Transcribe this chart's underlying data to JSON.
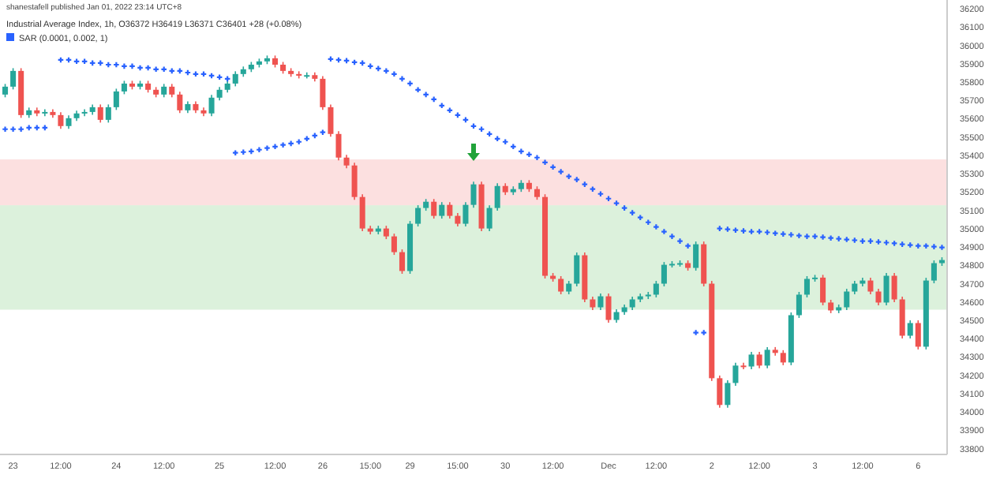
{
  "chart_data": {
    "type": "candlestick",
    "title": "Industrial Average Index, 1h, O36372 H36419 L36371 C36401 +28 (+0.08%)",
    "annotations": [
      "shanestafell published Jan 01, 2022 23:14 UTC+8"
    ],
    "categories": [
      null,
      "23",
      null,
      null,
      null,
      null,
      null,
      "12:00",
      null,
      null,
      null,
      null,
      null,
      null,
      "24",
      null,
      null,
      null,
      null,
      null,
      "12:00",
      null,
      null,
      null,
      null,
      null,
      null,
      "25",
      null,
      null,
      null,
      null,
      null,
      null,
      "12:00",
      null,
      null,
      null,
      null,
      null,
      "26",
      null,
      null,
      null,
      null,
      null,
      "15:00",
      null,
      null,
      null,
      null,
      "29",
      null,
      null,
      null,
      null,
      null,
      "15:00",
      null,
      null,
      null,
      null,
      null,
      "30",
      null,
      null,
      null,
      null,
      null,
      "12:00",
      null,
      null,
      null,
      null,
      null,
      null,
      "Dec",
      null,
      null,
      null,
      null,
      null,
      "12:00",
      null,
      null,
      null,
      null,
      null,
      null,
      "2",
      null,
      null,
      null,
      null,
      null,
      "12:00",
      null,
      null,
      null,
      null,
      null,
      null,
      "3",
      null,
      null,
      null,
      null,
      null,
      "12:00",
      null,
      null,
      null,
      null,
      null,
      null,
      "6",
      null,
      null,
      null
    ],
    "ohlc": [
      [
        35734,
        35792,
        35719,
        35777
      ],
      [
        35777,
        35878,
        35762,
        35863
      ],
      [
        35863,
        35878,
        35607,
        35622
      ],
      [
        35622,
        35663,
        35607,
        35648
      ],
      [
        35648,
        35663,
        35616,
        35631
      ],
      [
        35631,
        35654,
        35616,
        35639
      ],
      [
        35639,
        35654,
        35607,
        35622
      ],
      [
        35622,
        35637,
        35547,
        35562
      ],
      [
        35562,
        35620,
        35547,
        35605
      ],
      [
        35605,
        35646,
        35590,
        35631
      ],
      [
        35631,
        35654,
        35616,
        35639
      ],
      [
        35639,
        35680,
        35624,
        35665
      ],
      [
        35665,
        35680,
        35581,
        35596
      ],
      [
        35596,
        35680,
        35581,
        35665
      ],
      [
        35665,
        35766,
        35650,
        35751
      ],
      [
        35751,
        35809,
        35736,
        35794
      ],
      [
        35794,
        35809,
        35762,
        35777
      ],
      [
        35777,
        35809,
        35762,
        35794
      ],
      [
        35794,
        35809,
        35745,
        35760
      ],
      [
        35760,
        35775,
        35719,
        35734
      ],
      [
        35734,
        35792,
        35719,
        35777
      ],
      [
        35777,
        35792,
        35719,
        35734
      ],
      [
        35734,
        35749,
        35633,
        35648
      ],
      [
        35648,
        35697,
        35633,
        35682
      ],
      [
        35682,
        35697,
        35633,
        35648
      ],
      [
        35648,
        35663,
        35616,
        35631
      ],
      [
        35631,
        35732,
        35616,
        35717
      ],
      [
        35717,
        35775,
        35702,
        35760
      ],
      [
        35760,
        35809,
        35745,
        35794
      ],
      [
        35794,
        35861,
        35779,
        35846
      ],
      [
        35846,
        35887,
        35831,
        35872
      ],
      [
        35872,
        35912,
        35857,
        35897
      ],
      [
        35897,
        35930,
        35882,
        35915
      ],
      [
        35915,
        35947,
        35900,
        35932
      ],
      [
        35932,
        35947,
        35882,
        35897
      ],
      [
        35897,
        35912,
        35848,
        35863
      ],
      [
        35863,
        35878,
        35831,
        35846
      ],
      [
        35846,
        35861,
        35822,
        35837
      ],
      [
        35837,
        35855,
        35822,
        35840
      ],
      [
        35840,
        35855,
        35805,
        35820
      ],
      [
        35820,
        35835,
        35650,
        35665
      ],
      [
        35665,
        35680,
        35504,
        35519
      ],
      [
        35519,
        35534,
        35375,
        35390
      ],
      [
        35390,
        35405,
        35332,
        35347
      ],
      [
        35347,
        35362,
        35160,
        35175
      ],
      [
        35175,
        35190,
        34988,
        35003
      ],
      [
        35003,
        35018,
        34971,
        34986
      ],
      [
        34986,
        35018,
        34971,
        35003
      ],
      [
        35003,
        35018,
        34945,
        34960
      ],
      [
        34960,
        34975,
        34859,
        34874
      ],
      [
        34874,
        34889,
        34756,
        34771
      ],
      [
        34771,
        35044,
        34756,
        35029
      ],
      [
        35029,
        35130,
        35014,
        35115
      ],
      [
        35115,
        35164,
        35100,
        35149
      ],
      [
        35149,
        35164,
        35057,
        35072
      ],
      [
        35072,
        35147,
        35057,
        35132
      ],
      [
        35132,
        35147,
        35057,
        35072
      ],
      [
        35072,
        35087,
        35014,
        35029
      ],
      [
        35029,
        35147,
        35014,
        35132
      ],
      [
        35132,
        35259,
        35117,
        35244
      ],
      [
        35244,
        35259,
        34988,
        35003
      ],
      [
        35003,
        35130,
        34988,
        35115
      ],
      [
        35115,
        35250,
        35100,
        35235
      ],
      [
        35235,
        35250,
        35186,
        35201
      ],
      [
        35201,
        35233,
        35186,
        35218
      ],
      [
        35218,
        35267,
        35203,
        35252
      ],
      [
        35252,
        35267,
        35203,
        35218
      ],
      [
        35218,
        35233,
        35160,
        35175
      ],
      [
        35175,
        35190,
        34730,
        34745
      ],
      [
        34745,
        34760,
        34713,
        34728
      ],
      [
        34728,
        34743,
        34644,
        34659
      ],
      [
        34659,
        34717,
        34644,
        34702
      ],
      [
        34702,
        34872,
        34687,
        34857
      ],
      [
        34857,
        34872,
        34601,
        34616
      ],
      [
        34616,
        34631,
        34558,
        34573
      ],
      [
        34573,
        34648,
        34558,
        34633
      ],
      [
        34633,
        34648,
        34489,
        34504
      ],
      [
        34504,
        34562,
        34489,
        34547
      ],
      [
        34547,
        34588,
        34532,
        34573
      ],
      [
        34573,
        34631,
        34558,
        34616
      ],
      [
        34616,
        34648,
        34601,
        34633
      ],
      [
        34633,
        34657,
        34618,
        34642
      ],
      [
        34642,
        34717,
        34627,
        34702
      ],
      [
        34702,
        34820,
        34687,
        34805
      ],
      [
        34805,
        34825,
        34790,
        34810
      ],
      [
        34810,
        34829,
        34795,
        34814
      ],
      [
        34814,
        34829,
        34773,
        34788
      ],
      [
        34788,
        34932,
        34773,
        34917
      ],
      [
        34917,
        34932,
        34687,
        34702
      ],
      [
        34702,
        34717,
        34171,
        34186
      ],
      [
        34186,
        34201,
        34025,
        34040
      ],
      [
        34040,
        34175,
        34025,
        34160
      ],
      [
        34160,
        34270,
        34145,
        34255
      ],
      [
        34255,
        34270,
        34235,
        34250
      ],
      [
        34250,
        34330,
        34235,
        34315
      ],
      [
        34315,
        34330,
        34240,
        34255
      ],
      [
        34255,
        34356,
        34240,
        34341
      ],
      [
        34341,
        34356,
        34309,
        34324
      ],
      [
        34324,
        34339,
        34257,
        34272
      ],
      [
        34272,
        34545,
        34257,
        34530
      ],
      [
        34530,
        34657,
        34515,
        34642
      ],
      [
        34642,
        34743,
        34627,
        34728
      ],
      [
        34728,
        34750,
        34713,
        34735
      ],
      [
        34735,
        34750,
        34584,
        34599
      ],
      [
        34599,
        34614,
        34541,
        34556
      ],
      [
        34556,
        34588,
        34541,
        34573
      ],
      [
        34573,
        34674,
        34558,
        34659
      ],
      [
        34659,
        34717,
        34644,
        34702
      ],
      [
        34702,
        34734,
        34687,
        34719
      ],
      [
        34719,
        34734,
        34644,
        34659
      ],
      [
        34659,
        34674,
        34584,
        34599
      ],
      [
        34599,
        34760,
        34584,
        34745
      ],
      [
        34745,
        34760,
        34601,
        34616
      ],
      [
        34616,
        34631,
        34403,
        34418
      ],
      [
        34418,
        34502,
        34403,
        34487
      ],
      [
        34487,
        34502,
        34343,
        34358
      ],
      [
        34358,
        34734,
        34343,
        34719
      ],
      [
        34719,
        34829,
        34704,
        34814
      ],
      [
        34814,
        34846,
        34799,
        34831
      ]
    ],
    "series": [
      {
        "type": "scatter",
        "name": "SAR (0.0001, 0.002, 1)",
        "color": "#2962ff",
        "values": [
          35545,
          35545,
          35545,
          35553,
          35553,
          35553,
          null,
          35923,
          35923,
          35915,
          35915,
          35906,
          35906,
          35897,
          35897,
          35889,
          35889,
          35880,
          35880,
          35872,
          35872,
          35863,
          35863,
          35854,
          35846,
          35846,
          35837,
          35829,
          35820,
          35416,
          35420,
          35424,
          35433,
          35442,
          35450,
          35459,
          35467,
          35476,
          35493,
          35510,
          35528,
          35928,
          35923,
          35919,
          35910,
          35906,
          35889,
          35876,
          35863,
          35846,
          35820,
          35794,
          35760,
          35734,
          35708,
          35674,
          35648,
          35622,
          35596,
          35562,
          35545,
          35519,
          35493,
          35476,
          35450,
          35424,
          35407,
          35390,
          35364,
          35338,
          35313,
          35287,
          35270,
          35244,
          35218,
          35192,
          35166,
          35141,
          35115,
          35089,
          35063,
          35037,
          35012,
          34986,
          34960,
          34934,
          34908,
          34435,
          34435,
          null,
          35003,
          34999,
          34994,
          34990,
          34986,
          34986,
          34982,
          34977,
          34973,
          34969,
          34964,
          34960,
          34960,
          34956,
          34951,
          34947,
          34943,
          34939,
          34934,
          34934,
          34930,
          34926,
          34922,
          34917,
          34913,
          34908,
          34908,
          34904,
          34900
        ]
      }
    ],
    "marker": "cross",
    "legend": "top left",
    "bands": [
      {
        "axis": "y",
        "from": 35130,
        "to": 35380,
        "color": "#f7a7a7"
      },
      {
        "axis": "y",
        "from": 34560,
        "to": 35130,
        "color": "#9bd89b"
      }
    ],
    "ylim": [
      33770,
      36250
    ],
    "yticks": [
      33800,
      33900,
      34000,
      34100,
      34200,
      34300,
      34400,
      34500,
      34600,
      34700,
      34800,
      34900,
      35000,
      35100,
      35200,
      35300,
      35400,
      35500,
      35600,
      35700,
      35800,
      35900,
      36000,
      36100,
      36200
    ],
    "grid": false
  }
}
